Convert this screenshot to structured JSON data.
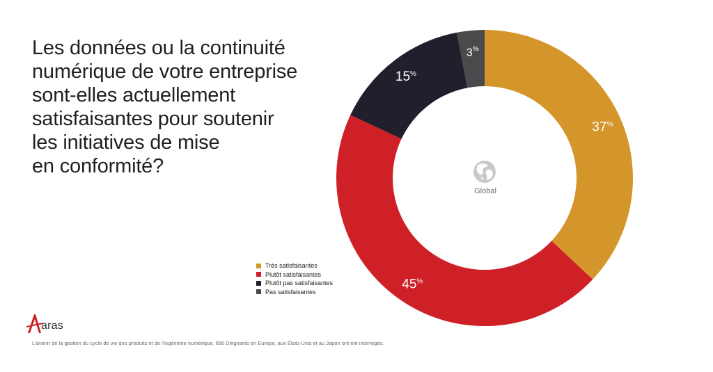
{
  "title_lines": [
    "Les données ou la continuité",
    "numérique de votre entreprise",
    "sont-elles actuellement",
    "satisfaisantes pour soutenir",
    "les initiatives de mise",
    "en conformité?"
  ],
  "chart_data": {
    "type": "pie",
    "variant": "donut",
    "center_label": "Global",
    "center_icon": "globe-icon",
    "start_angle_deg": 0,
    "direction": "clockwise",
    "legend_position": "bottom-left",
    "series": [
      {
        "name": "Très satisfaisantes",
        "value": 37,
        "label": "37",
        "unit": "%",
        "color": "#d4962a"
      },
      {
        "name": "Plutôt satisfaisantes",
        "value": 45,
        "label": "45",
        "unit": "%",
        "color": "#cf2027"
      },
      {
        "name": "Plutôt pas satisfaisantes",
        "value": 15,
        "label": "15",
        "unit": "%",
        "color": "#1f202c"
      },
      {
        "name": "Pas satisfaisantes",
        "value": 3,
        "label": "3",
        "unit": "%",
        "color": "#4a4a4c"
      }
    ]
  },
  "logo": {
    "text": "aras",
    "icon": "aras-a-icon",
    "color": "#cf2027"
  },
  "footnote": "L'avenir de la gestion du cycle de vie des produits et de l'ingénierie numérique. 656 Dirigeants en Europe, aux États-Unis et au Japon ont été interrogés."
}
